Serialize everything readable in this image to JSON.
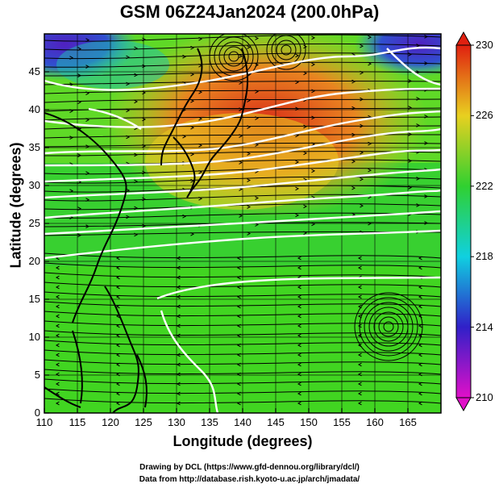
{
  "title": "GSM 06Z24Jan2024 (200.0hPa)",
  "axes": {
    "xlabel": "Longitude (degrees)",
    "ylabel": "Latitude  (degrees)",
    "xticks": [
      "110",
      "115",
      "120",
      "125",
      "130",
      "135",
      "140",
      "145",
      "150",
      "155",
      "160",
      "165"
    ],
    "yticks": [
      "0",
      "5",
      "10",
      "15",
      "20",
      "25",
      "30",
      "35",
      "40",
      "45"
    ]
  },
  "colorbar": {
    "ticks": [
      "210",
      "214",
      "218",
      "222",
      "226",
      "230"
    ],
    "colors": [
      "#e010c8",
      "#4020d0",
      "#10c8e0",
      "#30d030",
      "#f0d020",
      "#e03010"
    ]
  },
  "credits": {
    "line1": "Drawing by DCL (https://www.gfd-dennou.org/library/dcl/)",
    "line2": "Data from http://database.rish.kyoto-u.ac.jp/arch/jmadata/"
  },
  "chart_data": {
    "type": "heatmap",
    "title": "GSM 06Z24Jan2024 (200.0hPa)",
    "xlabel": "Longitude (degrees)",
    "ylabel": "Latitude  (degrees)",
    "xlim": [
      110,
      170
    ],
    "ylim": [
      0,
      50
    ],
    "grid": true,
    "colorbar_range": [
      210,
      230
    ],
    "colorbar_ticks": [
      210,
      214,
      218,
      222,
      226,
      230
    ],
    "overlays": [
      "streamlines",
      "white contour lines",
      "coastlines"
    ]
  }
}
